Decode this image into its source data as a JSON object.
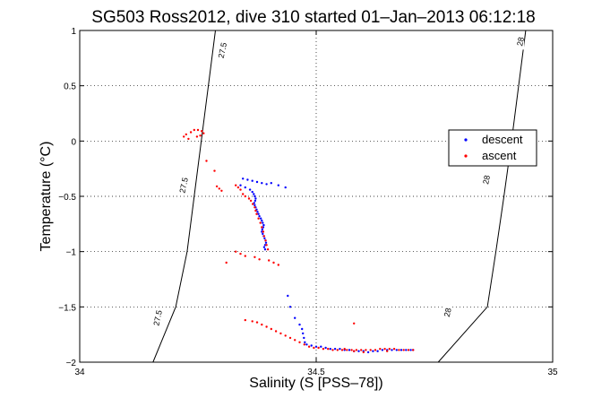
{
  "chart_data": {
    "type": "scatter",
    "title": "SG503 Ross2012, dive 310 started 01–Jan–2013 06:12:18",
    "xlabel": "Salinity (S [PSS–78])",
    "ylabel": "Temperature (°C)",
    "xlim": [
      34,
      35
    ],
    "ylim": [
      -2,
      1
    ],
    "x_ticks": [
      {
        "value": 34,
        "label": "34"
      },
      {
        "value": 34.5,
        "label": "34.5"
      },
      {
        "value": 35,
        "label": "35"
      }
    ],
    "y_ticks": [
      {
        "value": 1,
        "label": "1"
      },
      {
        "value": 0.5,
        "label": "0.5"
      },
      {
        "value": 0,
        "label": "0"
      },
      {
        "value": -0.5,
        "label": "−0.5"
      },
      {
        "value": -1,
        "label": "−1"
      },
      {
        "value": -1.5,
        "label": "−1.5"
      },
      {
        "value": -2,
        "label": "−2"
      }
    ],
    "grid": true,
    "grid_style": "dotted",
    "legend_position": "right",
    "contours": [
      {
        "label": "27.5",
        "points": [
          [
            34.287,
            1.0
          ],
          [
            34.272,
            0.5
          ],
          [
            34.257,
            0.0
          ],
          [
            34.242,
            -0.5
          ],
          [
            34.227,
            -1.0
          ],
          [
            34.203,
            -1.5
          ],
          [
            34.155,
            -2.0
          ]
        ],
        "label_positions": [
          [
            34.302,
            0.82
          ],
          [
            34.22,
            -0.4
          ],
          [
            34.165,
            -1.6
          ]
        ]
      },
      {
        "label": "28",
        "points": [
          [
            34.943,
            1.0
          ],
          [
            34.928,
            0.5
          ],
          [
            34.913,
            0.0
          ],
          [
            34.897,
            -0.5
          ],
          [
            34.88,
            -1.0
          ],
          [
            34.862,
            -1.5
          ],
          [
            34.758,
            -2.0
          ]
        ],
        "label_positions": [
          [
            34.932,
            0.9
          ],
          [
            34.86,
            -0.35
          ],
          [
            34.778,
            -1.55
          ]
        ]
      }
    ],
    "series": [
      {
        "name": "descent",
        "color": "#0000ff",
        "points": [
          [
            34.345,
            -0.34
          ],
          [
            34.355,
            -0.35
          ],
          [
            34.365,
            -0.36
          ],
          [
            34.375,
            -0.37
          ],
          [
            34.385,
            -0.38
          ],
          [
            34.395,
            -0.39
          ],
          [
            34.34,
            -0.4
          ],
          [
            34.35,
            -0.42
          ],
          [
            34.36,
            -0.44
          ],
          [
            34.365,
            -0.46
          ],
          [
            34.368,
            -0.48
          ],
          [
            34.37,
            -0.5
          ],
          [
            34.372,
            -0.52
          ],
          [
            34.371,
            -0.54
          ],
          [
            34.369,
            -0.56
          ],
          [
            34.37,
            -0.58
          ],
          [
            34.372,
            -0.6
          ],
          [
            34.374,
            -0.62
          ],
          [
            34.376,
            -0.64
          ],
          [
            34.378,
            -0.66
          ],
          [
            34.38,
            -0.68
          ],
          [
            34.383,
            -0.7
          ],
          [
            34.385,
            -0.72
          ],
          [
            34.387,
            -0.74
          ],
          [
            34.389,
            -0.76
          ],
          [
            34.388,
            -0.78
          ],
          [
            34.386,
            -0.8
          ],
          [
            34.385,
            -0.82
          ],
          [
            34.387,
            -0.84
          ],
          [
            34.389,
            -0.86
          ],
          [
            34.391,
            -0.88
          ],
          [
            34.393,
            -0.9
          ],
          [
            34.394,
            -0.92
          ],
          [
            34.392,
            -0.94
          ],
          [
            34.39,
            -0.96
          ],
          [
            34.392,
            -0.98
          ],
          [
            34.42,
            -0.4
          ],
          [
            34.405,
            -0.38
          ],
          [
            34.435,
            -0.42
          ],
          [
            34.44,
            -1.4
          ],
          [
            34.445,
            -1.5
          ],
          [
            34.455,
            -1.6
          ],
          [
            34.465,
            -1.66
          ],
          [
            34.47,
            -1.7
          ],
          [
            34.472,
            -1.74
          ],
          [
            34.474,
            -1.78
          ],
          [
            34.476,
            -1.82
          ],
          [
            34.48,
            -1.84
          ],
          [
            34.49,
            -1.85
          ],
          [
            34.5,
            -1.86
          ],
          [
            34.51,
            -1.86
          ],
          [
            34.52,
            -1.87
          ],
          [
            34.53,
            -1.88
          ],
          [
            34.54,
            -1.88
          ],
          [
            34.55,
            -1.88
          ],
          [
            34.56,
            -1.89
          ],
          [
            34.57,
            -1.89
          ],
          [
            34.58,
            -1.9
          ],
          [
            34.59,
            -1.9
          ],
          [
            34.6,
            -1.9
          ],
          [
            34.61,
            -1.91
          ],
          [
            34.62,
            -1.9
          ],
          [
            34.63,
            -1.9
          ],
          [
            34.64,
            -1.89
          ],
          [
            34.65,
            -1.89
          ],
          [
            34.66,
            -1.89
          ],
          [
            34.67,
            -1.89
          ],
          [
            34.68,
            -1.89
          ],
          [
            34.69,
            -1.89
          ],
          [
            34.7,
            -1.89
          ],
          [
            34.705,
            -1.89
          ]
        ]
      },
      {
        "name": "ascent",
        "color": "#ff0000",
        "points": [
          [
            34.225,
            0.06
          ],
          [
            34.235,
            0.08
          ],
          [
            34.242,
            0.1
          ],
          [
            34.25,
            0.1
          ],
          [
            34.258,
            0.09
          ],
          [
            34.262,
            0.07
          ],
          [
            34.255,
            0.05
          ],
          [
            34.248,
            0.04
          ],
          [
            34.22,
            0.04
          ],
          [
            34.23,
            0.02
          ],
          [
            34.268,
            -0.18
          ],
          [
            34.285,
            -0.27
          ],
          [
            34.29,
            -0.41
          ],
          [
            34.295,
            -0.43
          ],
          [
            34.3,
            -0.45
          ],
          [
            34.33,
            -0.4
          ],
          [
            34.335,
            -0.42
          ],
          [
            34.34,
            -0.44
          ],
          [
            34.345,
            -0.48
          ],
          [
            34.35,
            -0.5
          ],
          [
            34.358,
            -0.52
          ],
          [
            34.362,
            -0.54
          ],
          [
            34.366,
            -0.57
          ],
          [
            34.37,
            -0.6
          ],
          [
            34.372,
            -0.63
          ],
          [
            34.374,
            -0.66
          ],
          [
            34.378,
            -0.7
          ],
          [
            34.382,
            -0.74
          ],
          [
            34.385,
            -0.78
          ],
          [
            34.388,
            -0.82
          ],
          [
            34.39,
            -0.86
          ],
          [
            34.393,
            -0.9
          ],
          [
            34.395,
            -0.94
          ],
          [
            34.398,
            -0.98
          ],
          [
            34.33,
            -1.0
          ],
          [
            34.34,
            -1.02
          ],
          [
            34.35,
            -1.04
          ],
          [
            34.37,
            -1.05
          ],
          [
            34.38,
            -1.07
          ],
          [
            34.4,
            -1.08
          ],
          [
            34.41,
            -1.1
          ],
          [
            34.42,
            -1.12
          ],
          [
            34.31,
            -1.1
          ],
          [
            34.35,
            -1.62
          ],
          [
            34.365,
            -1.63
          ],
          [
            34.375,
            -1.64
          ],
          [
            34.385,
            -1.66
          ],
          [
            34.395,
            -1.68
          ],
          [
            34.405,
            -1.7
          ],
          [
            34.415,
            -1.72
          ],
          [
            34.425,
            -1.74
          ],
          [
            34.435,
            -1.76
          ],
          [
            34.445,
            -1.78
          ],
          [
            34.455,
            -1.8
          ],
          [
            34.465,
            -1.82
          ],
          [
            34.475,
            -1.84
          ],
          [
            34.485,
            -1.86
          ],
          [
            34.495,
            -1.87
          ],
          [
            34.505,
            -1.87
          ],
          [
            34.515,
            -1.88
          ],
          [
            34.525,
            -1.88
          ],
          [
            34.535,
            -1.89
          ],
          [
            34.545,
            -1.89
          ],
          [
            34.555,
            -1.89
          ],
          [
            34.565,
            -1.89
          ],
          [
            34.575,
            -1.89
          ],
          [
            34.585,
            -1.89
          ],
          [
            34.595,
            -1.89
          ],
          [
            34.605,
            -1.89
          ],
          [
            34.615,
            -1.89
          ],
          [
            34.625,
            -1.89
          ],
          [
            34.635,
            -1.88
          ],
          [
            34.645,
            -1.88
          ],
          [
            34.655,
            -1.88
          ],
          [
            34.665,
            -1.88
          ],
          [
            34.675,
            -1.89
          ],
          [
            34.685,
            -1.89
          ],
          [
            34.695,
            -1.89
          ],
          [
            34.705,
            -1.89
          ],
          [
            34.56,
            -1.88
          ],
          [
            34.58,
            -1.9
          ],
          [
            34.6,
            -1.91
          ],
          [
            34.65,
            -1.9
          ],
          [
            34.58,
            -1.65
          ]
        ]
      }
    ]
  }
}
